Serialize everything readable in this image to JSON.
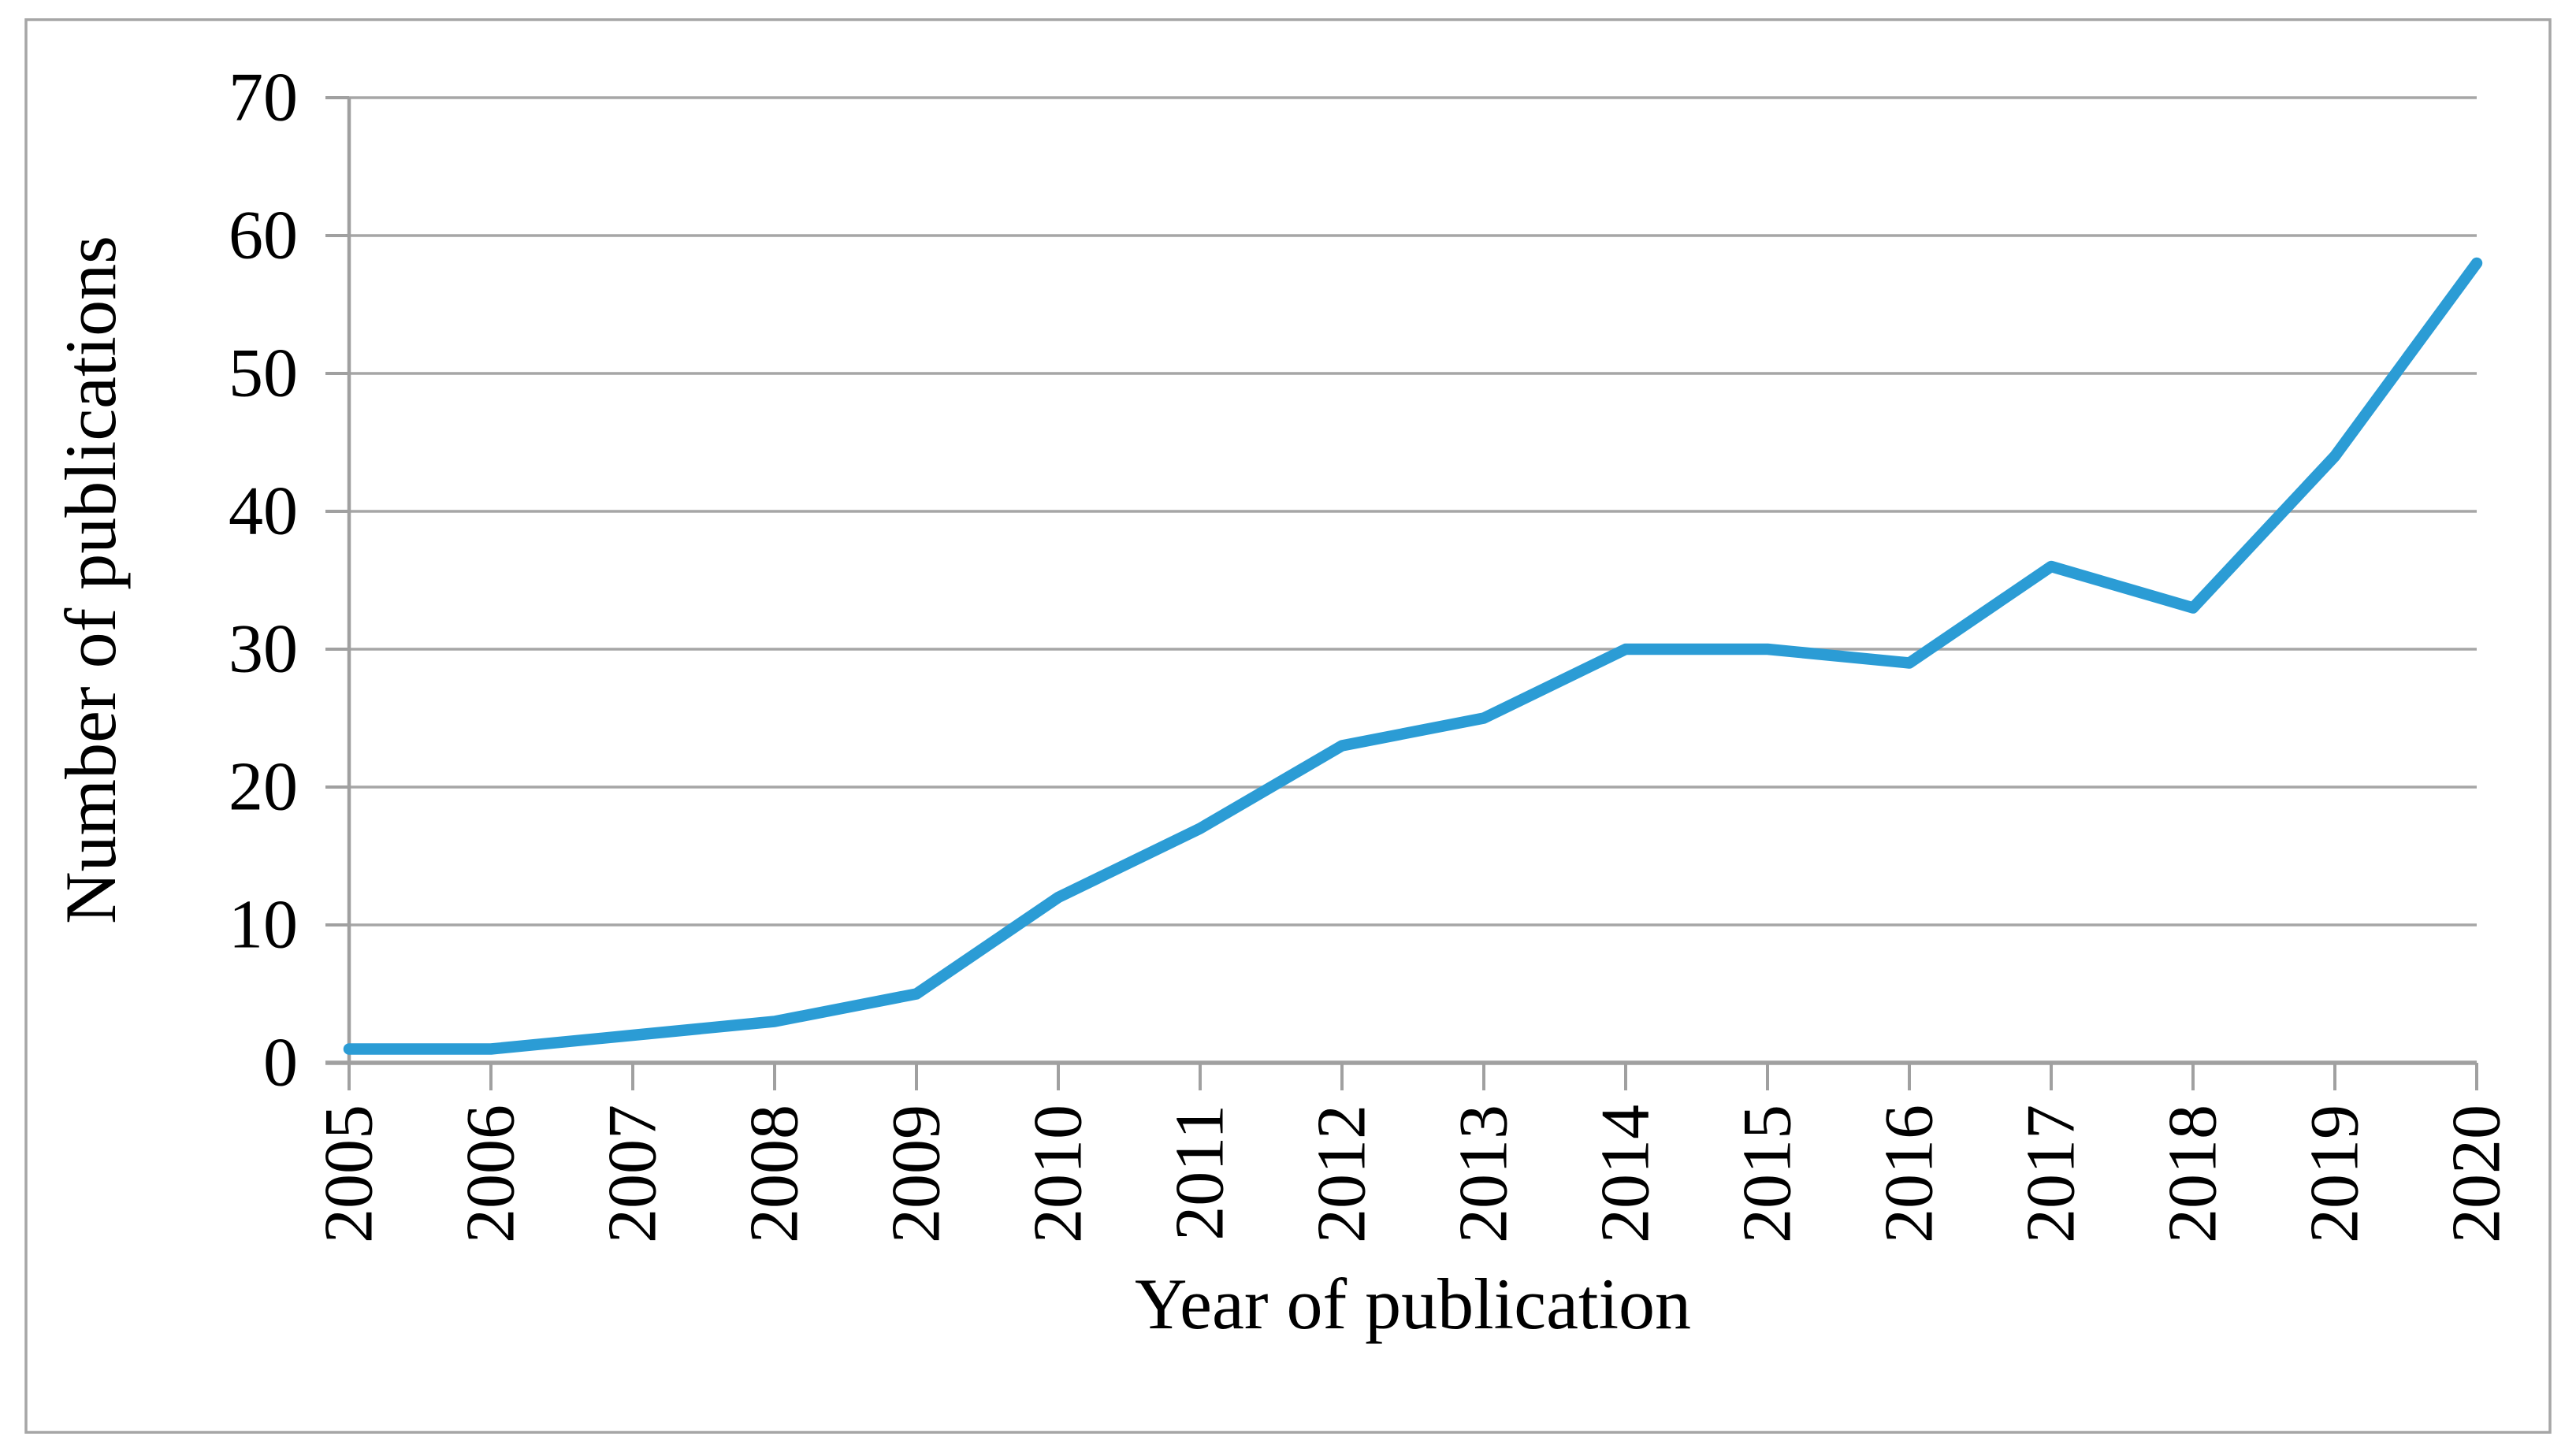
{
  "chart_data": {
    "type": "line",
    "title": "",
    "xlabel": "Year of publication",
    "ylabel": "Number of publications",
    "categories": [
      "2005",
      "2006",
      "2007",
      "2008",
      "2009",
      "2010",
      "2011",
      "2012",
      "2013",
      "2014",
      "2015",
      "2016",
      "2017",
      "2018",
      "2019",
      "2020"
    ],
    "series": [
      {
        "name": "Number of publications",
        "values": [
          1,
          1,
          2,
          3,
          5,
          12,
          17,
          23,
          25,
          30,
          30,
          29,
          36,
          33,
          44,
          58
        ]
      }
    ],
    "ylim": [
      0,
      70
    ],
    "yticks": [
      0,
      10,
      20,
      30,
      40,
      50,
      60,
      70
    ],
    "grid": "horizontal",
    "legend": "none",
    "x_labels_rotated_degrees": 90,
    "colors": {
      "line": "#2B9CD5",
      "gridline": "#A6A6A6",
      "axis": "#A0A0A0",
      "figure_border": "#A6A6A6",
      "text": "#000000",
      "background": "#FFFFFF"
    }
  }
}
